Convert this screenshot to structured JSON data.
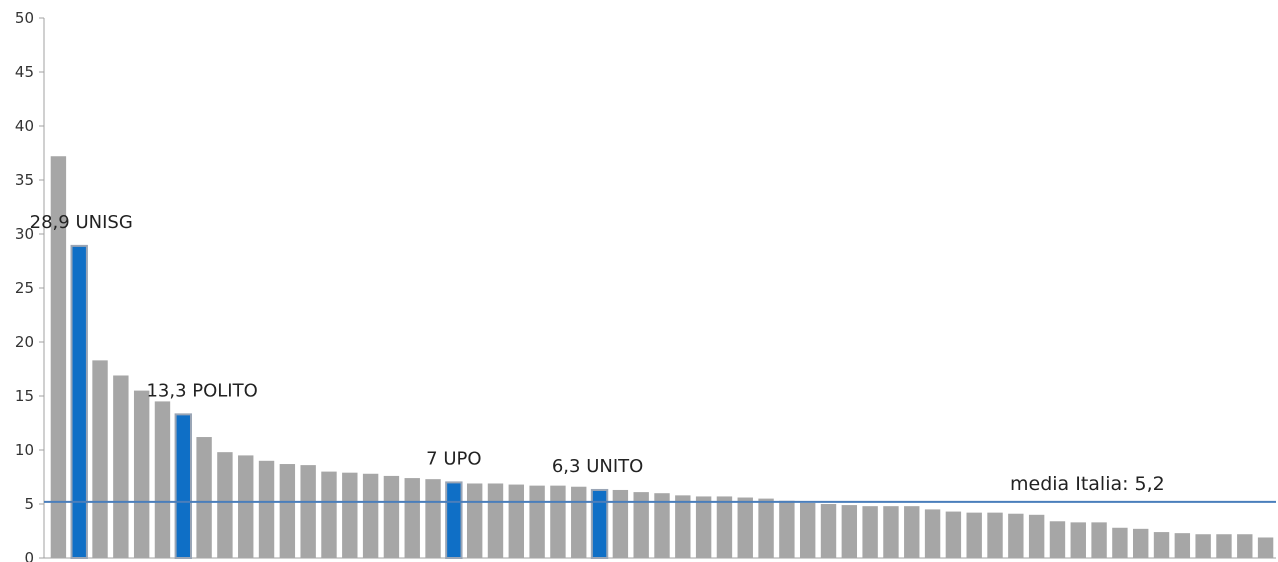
{
  "colors": {
    "bar": "#a6a6a6",
    "highlight": "#0f6fc6",
    "highlight_border": "#9aa5b5",
    "avg_line": "#4a7ebb",
    "axis": "#a0a0a0"
  },
  "chart_data": {
    "type": "bar",
    "title": "",
    "xlabel": "",
    "ylabel": "",
    "ylim": [
      0,
      50
    ],
    "yticks": [
      0,
      5,
      10,
      15,
      20,
      25,
      30,
      35,
      40,
      45,
      50
    ],
    "grid": false,
    "values": [
      37.2,
      28.9,
      18.3,
      16.9,
      15.5,
      14.5,
      13.3,
      11.2,
      9.8,
      9.5,
      9.0,
      8.7,
      8.6,
      8.0,
      7.9,
      7.8,
      7.6,
      7.4,
      7.3,
      7.0,
      6.9,
      6.9,
      6.8,
      6.7,
      6.7,
      6.6,
      6.3,
      6.3,
      6.1,
      6.0,
      5.8,
      5.7,
      5.7,
      5.6,
      5.5,
      5.3,
      5.1,
      5.0,
      4.9,
      4.8,
      4.8,
      4.8,
      4.5,
      4.3,
      4.2,
      4.2,
      4.1,
      4.0,
      3.4,
      3.3,
      3.3,
      2.8,
      2.7,
      2.4,
      2.3,
      2.2,
      2.2,
      2.2,
      1.9
    ],
    "highlighted": [
      {
        "index": 1,
        "label": "28,9 UNISG"
      },
      {
        "index": 6,
        "label": "13,3 POLITO"
      },
      {
        "index": 19,
        "label": "7 UPO"
      },
      {
        "index": 26,
        "label": "6,3 UNITO"
      }
    ],
    "average": {
      "value": 5.2,
      "label": "media Italia: 5,2"
    }
  }
}
